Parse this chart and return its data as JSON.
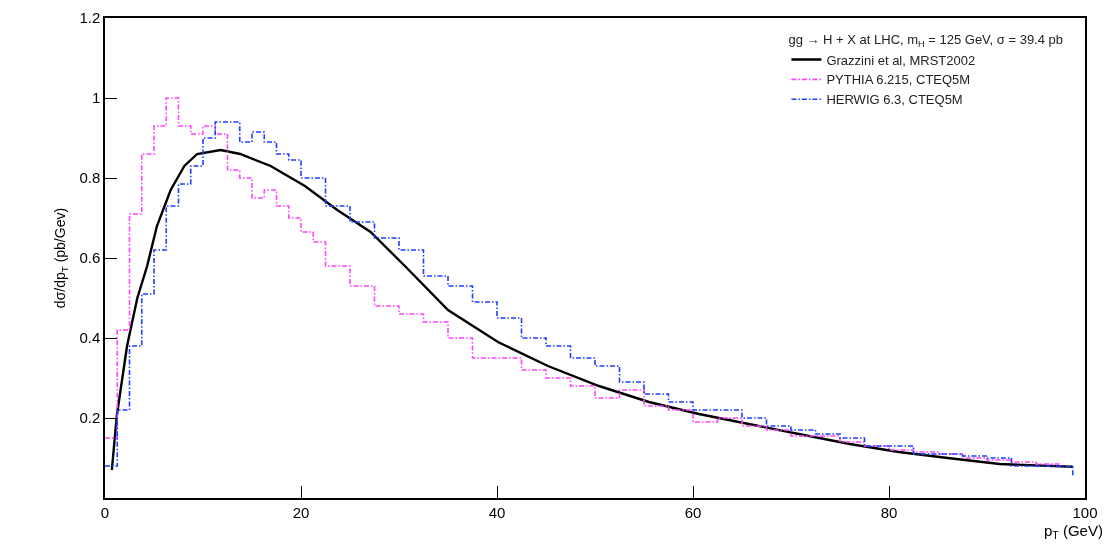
{
  "chart_data": {
    "type": "line",
    "legend_title": "gg → H + X at LHC, m$_{H}$ = 125 GeV, σ = 39.4 pb",
    "xlabel": "p$_{T}$ (GeV)",
    "ylabel": "dσ/dp$_{T}$ (pb/Gev)",
    "xlim": [
      0,
      100
    ],
    "xticks": [
      0,
      20,
      40,
      60,
      80,
      100
    ],
    "ylim": [
      0,
      1.2
    ],
    "yticks": [
      0.2,
      0.4,
      0.6,
      0.8,
      1,
      1.2
    ],
    "grid": false,
    "legend": "top right",
    "marker": "none",
    "series": [
      {
        "name": "Grazzini et al, MRST2002",
        "color": "#000000",
        "line_style": "solid",
        "x": [
          0.7,
          1.2,
          2.25,
          3.3,
          4.3,
          5.3,
          6.7,
          8.1,
          9.4,
          11.8,
          13.8,
          16.9,
          20.4,
          23.7,
          27.1,
          30.6,
          35,
          40.1,
          45.2,
          50.4,
          55.5,
          60.6,
          65.7,
          70.8,
          76,
          81,
          86,
          91.3,
          98.75
        ],
        "values": [
          0.07,
          0.205,
          0.38,
          0.5,
          0.58,
          0.68,
          0.77,
          0.83,
          0.86,
          0.87,
          0.86,
          0.83,
          0.78,
          0.72,
          0.665,
          0.58,
          0.47,
          0.39,
          0.33,
          0.28,
          0.24,
          0.21,
          0.185,
          0.16,
          0.135,
          0.115,
          0.1,
          0.085,
          0.078
        ]
      },
      {
        "name": "PYTHIA 6.215, CTEQ5M",
        "color": "#ff44ff",
        "type": "step",
        "line_style": "dashed",
        "x": [
          0,
          1.25,
          2.5,
          3.75,
          5,
          6.25,
          7.5,
          8.75,
          10,
          11.25,
          12.5,
          13.75,
          15,
          16.25,
          17.5,
          18.75,
          20,
          21.25,
          22.5,
          25,
          27.5,
          30,
          32.5,
          35,
          37.5,
          40,
          42.5,
          45,
          47.5,
          50,
          52.5,
          55,
          57.5,
          60,
          62.5,
          65,
          67.5,
          70,
          72.5,
          75,
          77.5,
          80,
          82.5,
          85,
          87.5,
          90,
          92.5,
          95,
          97.5
        ],
        "values": [
          0.15,
          0.42,
          0.71,
          0.86,
          0.93,
          1.0,
          0.93,
          0.91,
          0.93,
          0.91,
          0.82,
          0.8,
          0.75,
          0.77,
          0.73,
          0.7,
          0.665,
          0.64,
          0.58,
          0.53,
          0.48,
          0.46,
          0.44,
          0.4,
          0.35,
          0.35,
          0.32,
          0.3,
          0.28,
          0.25,
          0.27,
          0.23,
          0.22,
          0.19,
          0.2,
          0.18,
          0.17,
          0.155,
          0.155,
          0.14,
          0.13,
          0.12,
          0.115,
          0.11,
          0.1,
          0.095,
          0.09,
          0.085,
          0.08
        ]
      },
      {
        "name": "HERWIG 6.3, CTEQ5M",
        "color": "#1f3fff",
        "type": "step",
        "line_style": "dashed",
        "x": [
          0,
          1.25,
          2.5,
          3.75,
          5,
          6.25,
          7.5,
          8.75,
          10,
          11.25,
          12.5,
          13.75,
          15,
          16.25,
          17.5,
          18.75,
          20,
          22.5,
          25,
          27.5,
          30,
          32.5,
          35,
          37.5,
          40,
          42.5,
          45,
          47.5,
          50,
          52.5,
          55,
          57.5,
          60,
          62.5,
          65,
          67.5,
          70,
          72.5,
          75,
          77.5,
          80,
          82.5,
          85,
          87.5,
          90,
          92.5,
          95,
          97.5,
          98.75
        ],
        "values": [
          0.08,
          0.22,
          0.38,
          0.51,
          0.62,
          0.73,
          0.785,
          0.83,
          0.9,
          0.94,
          0.94,
          0.89,
          0.915,
          0.89,
          0.86,
          0.845,
          0.8,
          0.73,
          0.69,
          0.65,
          0.62,
          0.555,
          0.53,
          0.49,
          0.45,
          0.4,
          0.38,
          0.35,
          0.33,
          0.29,
          0.26,
          0.24,
          0.22,
          0.22,
          0.2,
          0.18,
          0.17,
          0.16,
          0.15,
          0.13,
          0.13,
          0.11,
          0.11,
          0.105,
          0.1,
          0.08,
          0.08,
          0.078,
          0.055
        ]
      }
    ]
  }
}
